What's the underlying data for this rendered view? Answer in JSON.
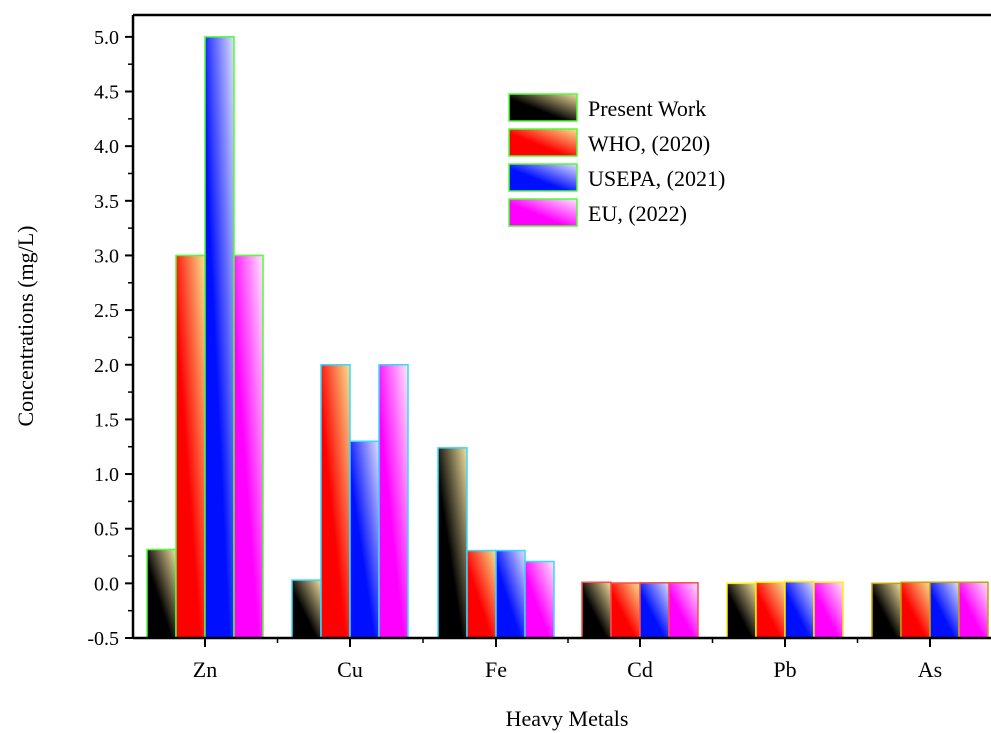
{
  "chart_data": {
    "type": "bar",
    "xlabel": "Heavy Metals",
    "ylabel": "Concentrations (mg/L)",
    "ylim": [
      -0.5,
      5.2
    ],
    "y_ticks": [
      "-0.5",
      "0.0",
      "0.5",
      "1.0",
      "1.5",
      "2.0",
      "2.5",
      "3.0",
      "3.5",
      "4.0",
      "4.5",
      "5.0"
    ],
    "y_tick_values": [
      -0.5,
      0,
      0.5,
      1,
      1.5,
      2,
      2.5,
      3,
      3.5,
      4,
      4.5,
      5
    ],
    "categories": [
      "Zn",
      "Cu",
      "Fe",
      "Cd",
      "Pb",
      "As"
    ],
    "series": [
      {
        "name": "Present Work",
        "values": [
          0.31,
          0.03,
          1.24,
          0.01,
          0.0,
          0.0
        ]
      },
      {
        "name": "WHO, (2020)",
        "values": [
          3.0,
          2.0,
          0.3,
          0.003,
          0.01,
          0.01
        ]
      },
      {
        "name": "USEPA, (2021)",
        "values": [
          5.0,
          1.3,
          0.3,
          0.005,
          0.015,
          0.01
        ]
      },
      {
        "name": "EU, (2022)",
        "values": [
          3.0,
          2.0,
          0.2,
          0.005,
          0.01,
          0.01
        ]
      }
    ],
    "legend_position": "top-right",
    "grid": false,
    "bar_outline_colors": [
      "#4cff2e",
      "#36d9ff",
      "#36d9ff",
      "#ff4a4a",
      "#ffee00",
      "#c8a000"
    ],
    "series_colors": {
      "s0": [
        "#000000",
        "#f2df9e"
      ],
      "s1": [
        "#ff0000",
        "#f6e28c"
      ],
      "s2": [
        "#0010ff",
        "#dfe0ff"
      ],
      "s3": [
        "#ff00ff",
        "#ffe6ff"
      ]
    }
  }
}
